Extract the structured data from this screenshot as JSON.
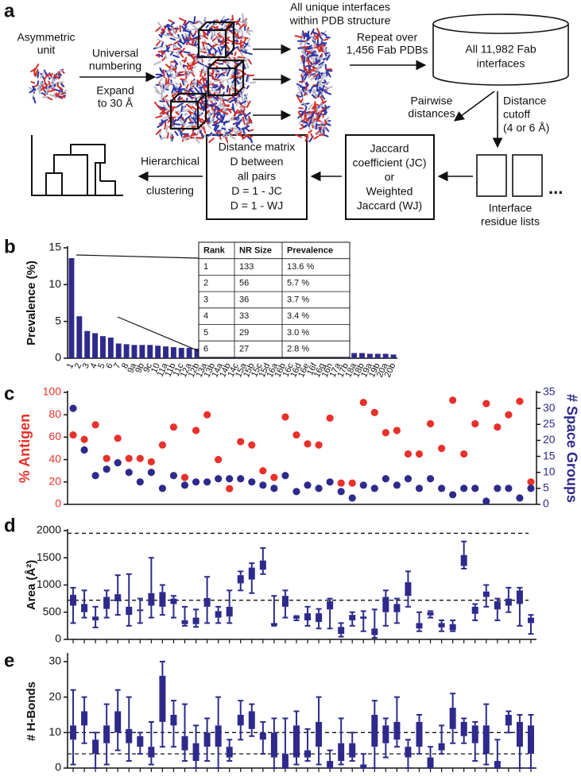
{
  "panel_labels": [
    "a",
    "b",
    "c",
    "d",
    "e"
  ],
  "diagram": {
    "asym_unit": [
      "Asymmetric",
      "unit"
    ],
    "numbering": [
      "Universal",
      "numbering"
    ],
    "expand": [
      "Expand",
      "to 30 Å"
    ],
    "unique": [
      "All unique interfaces",
      "within PDB structure"
    ],
    "repeat": [
      "Repeat over",
      "1,456 Fab PDBs"
    ],
    "all_interfaces": [
      "All 11,982 Fab",
      "interfaces"
    ],
    "pairwise": [
      "Pairwise",
      "distances"
    ],
    "cutoff": [
      "Distance",
      "cutoff",
      "(4 or 6 Å)"
    ],
    "residue_lists": [
      "Interface",
      "residue lists"
    ],
    "ellipsis": "...",
    "jaccard": [
      "Jaccard",
      "coefficient (JC)",
      "or",
      "Weighted",
      "Jaccard  (WJ)"
    ],
    "matrix": [
      "Distance matrix",
      "D between",
      "all pairs",
      "D = 1 - JC",
      "D = 1 - WJ"
    ],
    "clustering": [
      "Hierarchical",
      "clustering"
    ]
  },
  "table": {
    "header": [
      "Rank",
      "NR Size",
      "Prevalence"
    ],
    "rows": [
      [
        "1",
        "133",
        "13.6 %"
      ],
      [
        "2",
        "56",
        "5.7 %"
      ],
      [
        "3",
        "36",
        "3.7 %"
      ],
      [
        "4",
        "33",
        "3.4 %"
      ],
      [
        "5",
        "29",
        "3.0 %"
      ],
      [
        "6",
        "27",
        "2.8 %"
      ]
    ]
  },
  "chart_data": [
    {
      "type": "bar",
      "y_label": "Prevalence (%)",
      "color": "#2e2a8c",
      "categories": [
        "1",
        "2",
        "3",
        "4",
        "5",
        "6",
        "7",
        "8",
        "9a",
        "9b",
        "9c",
        "10",
        "11a",
        "11b",
        "11c",
        "12a",
        "12b",
        "13a",
        "13b",
        "14a",
        "14b",
        "14c",
        "15a",
        "15b",
        "15c",
        "15d",
        "16a",
        "16b",
        "16c",
        "16d",
        "16e",
        "16f",
        "16g",
        "16h",
        "17a",
        "17b",
        "18a",
        "18b",
        "19a",
        "19b",
        "20a",
        "20b"
      ],
      "values": [
        13.6,
        5.7,
        3.7,
        3.4,
        3.0,
        2.8,
        2.0,
        1.9,
        1.8,
        1.8,
        1.8,
        1.7,
        1.6,
        1.5,
        1.4,
        1.4,
        1.3,
        1.3,
        1.2,
        1.2,
        1.1,
        1.1,
        1.0,
        1.0,
        1.0,
        1.0,
        0.9,
        0.9,
        0.9,
        0.8,
        0.8,
        0.8,
        0.8,
        0.8,
        0.7,
        0.7,
        0.7,
        0.7,
        0.6,
        0.6,
        0.6,
        0.5
      ],
      "ylim": [
        0,
        15
      ],
      "yticks": [
        0,
        5,
        10,
        15
      ]
    },
    {
      "type": "scatter",
      "ylim": [
        0,
        100
      ],
      "yticks": [
        0,
        20,
        40,
        60,
        80,
        100
      ],
      "y2lim": [
        0,
        35
      ],
      "y2ticks": [
        0,
        5,
        10,
        15,
        20,
        25,
        30,
        35
      ],
      "series": [
        {
          "name": "% Antigen",
          "color": "#e8312a",
          "values": [
            62,
            58,
            71,
            41,
            59,
            41,
            41,
            38,
            53,
            69,
            24,
            66,
            80,
            40,
            14,
            56,
            53,
            30,
            24,
            78,
            62,
            54,
            53,
            77,
            19,
            19,
            91,
            82,
            64,
            66,
            45,
            45,
            72,
            50,
            93,
            45,
            72,
            90,
            69,
            80,
            92,
            20
          ]
        },
        {
          "name": "# Space Groups",
          "color": "#2e2a8c",
          "axis": "y2",
          "values": [
            30,
            17,
            9,
            11,
            13,
            10,
            7,
            10,
            5,
            9,
            6,
            7,
            7,
            8,
            8,
            8,
            7,
            6,
            5,
            9,
            4,
            6,
            5,
            7,
            4,
            2,
            6,
            5,
            8,
            6,
            8,
            5,
            8,
            5,
            3,
            5,
            5,
            1,
            5,
            5,
            2,
            5
          ]
        }
      ]
    },
    {
      "type": "box",
      "y_label": "Area (Å²)",
      "color": "#2e2a8c",
      "ylim": [
        0,
        2000
      ],
      "yticks": [
        0,
        500,
        1000,
        1500,
        2000
      ],
      "reference_lines": [
        1950,
        720
      ],
      "whisker_low": [
        300,
        400,
        220,
        400,
        450,
        250,
        300,
        400,
        450,
        400,
        250,
        230,
        300,
        300,
        300,
        900,
        850,
        1200,
        250,
        400,
        350,
        250,
        200,
        200,
        50,
        250,
        150,
        30,
        250,
        300,
        600,
        150,
        400,
        150,
        150,
        1300,
        350,
        600,
        350,
        500,
        250,
        100
      ],
      "q1": [
        620,
        500,
        350,
        560,
        700,
        450,
        520,
        620,
        600,
        650,
        280,
        280,
        600,
        400,
        420,
        1030,
        1100,
        1280,
        260,
        600,
        380,
        350,
        320,
        550,
        100,
        350,
        380,
        80,
        500,
        500,
        800,
        200,
        440,
        220,
        170,
        1350,
        470,
        780,
        550,
        620,
        650,
        300
      ],
      "q3": [
        820,
        650,
        420,
        780,
        830,
        600,
        550,
        850,
        870,
        750,
        350,
        400,
        760,
        520,
        600,
        1180,
        1320,
        1450,
        300,
        800,
        420,
        480,
        480,
        700,
        230,
        450,
        420,
        200,
        780,
        650,
        1050,
        300,
        500,
        300,
        280,
        1550,
        600,
        880,
        700,
        750,
        900,
        400
      ],
      "whisker_high": [
        950,
        900,
        600,
        900,
        1180,
        1200,
        750,
        1500,
        1000,
        800,
        600,
        550,
        1150,
        600,
        900,
        1250,
        1400,
        1680,
        800,
        900,
        430,
        600,
        560,
        750,
        300,
        500,
        520,
        550,
        900,
        750,
        1250,
        500,
        520,
        350,
        350,
        1800,
        650,
        1000,
        750,
        950,
        950,
        450
      ]
    },
    {
      "type": "box",
      "y_label": "# H-Bonds",
      "color": "#2e2a8c",
      "ylim": [
        0,
        32
      ],
      "yticks": [
        0,
        10,
        20,
        30
      ],
      "reference_lines": [
        10,
        4
      ],
      "whisker_low": [
        1,
        7,
        0,
        1,
        5,
        2,
        4,
        1,
        6,
        6,
        2,
        0,
        2,
        0,
        2,
        8,
        9,
        4,
        0,
        0,
        1,
        2,
        1,
        0,
        1,
        2,
        0,
        0,
        3,
        6,
        0,
        4,
        0,
        4,
        7,
        7,
        2,
        1,
        0,
        10,
        0,
        0
      ],
      "q1": [
        8,
        12,
        4,
        7,
        10,
        7,
        6,
        3,
        13,
        12,
        5,
        2,
        6,
        6,
        3,
        12,
        11,
        8,
        3,
        0,
        3,
        3,
        6,
        0,
        2,
        3,
        0,
        6,
        7,
        8,
        3,
        6,
        0,
        5,
        11,
        9,
        7,
        4,
        0,
        12,
        6,
        4
      ],
      "q3": [
        12,
        16,
        8,
        12,
        16,
        11,
        9,
        6,
        26,
        15,
        9,
        7,
        10,
        12,
        6,
        15,
        16,
        10,
        10,
        4,
        12,
        5,
        13,
        2,
        7,
        7,
        1,
        15,
        12,
        13,
        6,
        13,
        3,
        7,
        17,
        13,
        12,
        12,
        2,
        15,
        13,
        12
      ],
      "whisker_high": [
        22,
        20,
        10,
        18,
        22,
        20,
        10,
        13,
        30,
        19,
        18,
        12,
        14,
        20,
        8,
        19,
        18,
        13,
        14,
        14,
        16,
        11,
        20,
        5,
        14,
        10,
        4,
        19,
        14,
        20,
        8,
        15,
        6,
        12,
        21,
        14,
        13,
        18,
        8,
        16,
        15,
        15
      ]
    }
  ]
}
